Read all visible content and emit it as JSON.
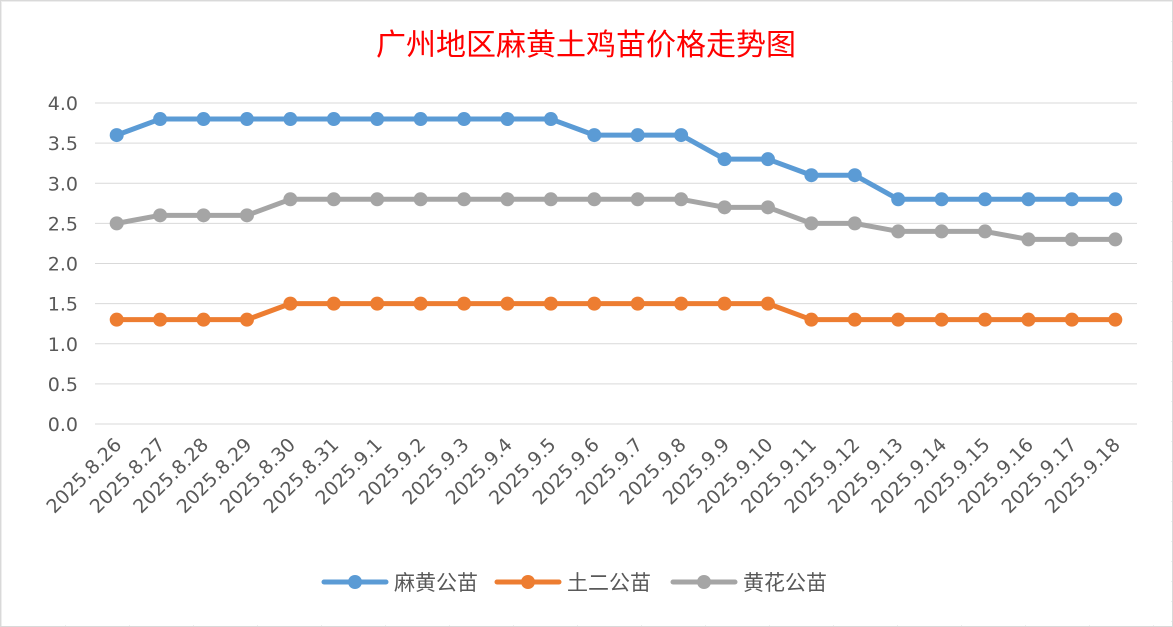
{
  "chart_data": {
    "type": "line",
    "title": "广州地区麻黄土鸡苗价格走势图",
    "xlabel": "",
    "ylabel": "",
    "x": [
      "2025.8.26",
      "2025.8.27",
      "2025.8.28",
      "2025.8.29",
      "2025.8.30",
      "2025.8.31",
      "2025.9.1",
      "2025.9.2",
      "2025.9.3",
      "2025.9.4",
      "2025.9.5",
      "2025.9.6",
      "2025.9.7",
      "2025.9.8",
      "2025.9.9",
      "2025.9.10",
      "2025.9.11",
      "2025.9.12",
      "2025.9.13",
      "2025.9.14",
      "2025.9.15",
      "2025.9.16",
      "2025.9.17",
      "2025.9.18"
    ],
    "ylim": [
      0,
      4
    ],
    "yticks": [
      "0.0",
      "0.5",
      "1.0",
      "1.5",
      "2.0",
      "2.5",
      "3.0",
      "3.5",
      "4.0"
    ],
    "grid": true,
    "legend_position": "bottom",
    "series": [
      {
        "name": "麻黄公苗",
        "color": "#5b9bd5",
        "values": [
          3.6,
          3.8,
          3.8,
          3.8,
          3.8,
          3.8,
          3.8,
          3.8,
          3.8,
          3.8,
          3.8,
          3.6,
          3.6,
          3.6,
          3.3,
          3.3,
          3.1,
          3.1,
          2.8,
          2.8,
          2.8,
          2.8,
          2.8,
          2.8
        ]
      },
      {
        "name": "土二公苗",
        "color": "#ed7d31",
        "values": [
          1.3,
          1.3,
          1.3,
          1.3,
          1.5,
          1.5,
          1.5,
          1.5,
          1.5,
          1.5,
          1.5,
          1.5,
          1.5,
          1.5,
          1.5,
          1.5,
          1.3,
          1.3,
          1.3,
          1.3,
          1.3,
          1.3,
          1.3,
          1.3
        ]
      },
      {
        "name": "黄花公苗",
        "color": "#a5a5a5",
        "values": [
          2.5,
          2.6,
          2.6,
          2.6,
          2.8,
          2.8,
          2.8,
          2.8,
          2.8,
          2.8,
          2.8,
          2.8,
          2.8,
          2.8,
          2.7,
          2.7,
          2.5,
          2.5,
          2.4,
          2.4,
          2.4,
          2.3,
          2.3,
          2.3
        ]
      }
    ]
  }
}
